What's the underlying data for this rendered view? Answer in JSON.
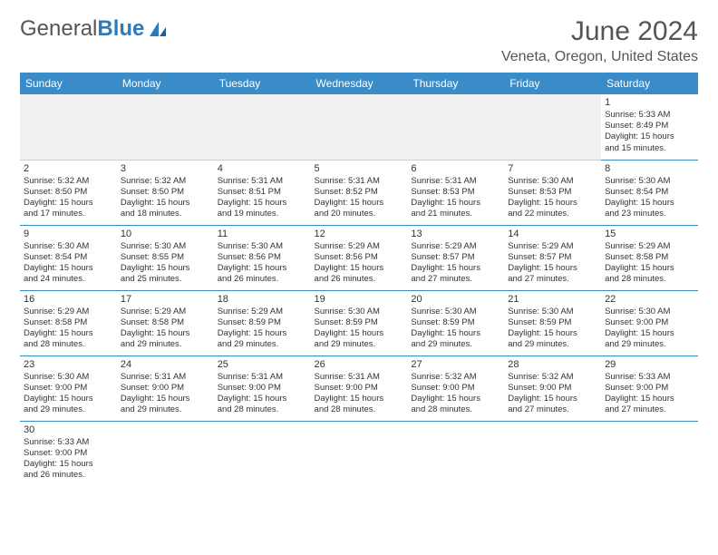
{
  "logo": {
    "text1": "General",
    "text2": "Blue"
  },
  "title": "June 2024",
  "location": "Veneta, Oregon, United States",
  "colors": {
    "header_bg": "#3a8cc9",
    "header_text": "#ffffff",
    "rule": "#3a8cc9",
    "logo_blue": "#2b7bbf",
    "text": "#333333",
    "muted_bg": "#f0f0f0"
  },
  "weekdays": [
    "Sunday",
    "Monday",
    "Tuesday",
    "Wednesday",
    "Thursday",
    "Friday",
    "Saturday"
  ],
  "weeks": [
    [
      null,
      null,
      null,
      null,
      null,
      null,
      {
        "n": "1",
        "sunrise": "Sunrise: 5:33 AM",
        "sunset": "Sunset: 8:49 PM",
        "day1": "Daylight: 15 hours",
        "day2": "and 15 minutes."
      }
    ],
    [
      {
        "n": "2",
        "sunrise": "Sunrise: 5:32 AM",
        "sunset": "Sunset: 8:50 PM",
        "day1": "Daylight: 15 hours",
        "day2": "and 17 minutes."
      },
      {
        "n": "3",
        "sunrise": "Sunrise: 5:32 AM",
        "sunset": "Sunset: 8:50 PM",
        "day1": "Daylight: 15 hours",
        "day2": "and 18 minutes."
      },
      {
        "n": "4",
        "sunrise": "Sunrise: 5:31 AM",
        "sunset": "Sunset: 8:51 PM",
        "day1": "Daylight: 15 hours",
        "day2": "and 19 minutes."
      },
      {
        "n": "5",
        "sunrise": "Sunrise: 5:31 AM",
        "sunset": "Sunset: 8:52 PM",
        "day1": "Daylight: 15 hours",
        "day2": "and 20 minutes."
      },
      {
        "n": "6",
        "sunrise": "Sunrise: 5:31 AM",
        "sunset": "Sunset: 8:53 PM",
        "day1": "Daylight: 15 hours",
        "day2": "and 21 minutes."
      },
      {
        "n": "7",
        "sunrise": "Sunrise: 5:30 AM",
        "sunset": "Sunset: 8:53 PM",
        "day1": "Daylight: 15 hours",
        "day2": "and 22 minutes."
      },
      {
        "n": "8",
        "sunrise": "Sunrise: 5:30 AM",
        "sunset": "Sunset: 8:54 PM",
        "day1": "Daylight: 15 hours",
        "day2": "and 23 minutes."
      }
    ],
    [
      {
        "n": "9",
        "sunrise": "Sunrise: 5:30 AM",
        "sunset": "Sunset: 8:54 PM",
        "day1": "Daylight: 15 hours",
        "day2": "and 24 minutes."
      },
      {
        "n": "10",
        "sunrise": "Sunrise: 5:30 AM",
        "sunset": "Sunset: 8:55 PM",
        "day1": "Daylight: 15 hours",
        "day2": "and 25 minutes."
      },
      {
        "n": "11",
        "sunrise": "Sunrise: 5:30 AM",
        "sunset": "Sunset: 8:56 PM",
        "day1": "Daylight: 15 hours",
        "day2": "and 26 minutes."
      },
      {
        "n": "12",
        "sunrise": "Sunrise: 5:29 AM",
        "sunset": "Sunset: 8:56 PM",
        "day1": "Daylight: 15 hours",
        "day2": "and 26 minutes."
      },
      {
        "n": "13",
        "sunrise": "Sunrise: 5:29 AM",
        "sunset": "Sunset: 8:57 PM",
        "day1": "Daylight: 15 hours",
        "day2": "and 27 minutes."
      },
      {
        "n": "14",
        "sunrise": "Sunrise: 5:29 AM",
        "sunset": "Sunset: 8:57 PM",
        "day1": "Daylight: 15 hours",
        "day2": "and 27 minutes."
      },
      {
        "n": "15",
        "sunrise": "Sunrise: 5:29 AM",
        "sunset": "Sunset: 8:58 PM",
        "day1": "Daylight: 15 hours",
        "day2": "and 28 minutes."
      }
    ],
    [
      {
        "n": "16",
        "sunrise": "Sunrise: 5:29 AM",
        "sunset": "Sunset: 8:58 PM",
        "day1": "Daylight: 15 hours",
        "day2": "and 28 minutes."
      },
      {
        "n": "17",
        "sunrise": "Sunrise: 5:29 AM",
        "sunset": "Sunset: 8:58 PM",
        "day1": "Daylight: 15 hours",
        "day2": "and 29 minutes."
      },
      {
        "n": "18",
        "sunrise": "Sunrise: 5:29 AM",
        "sunset": "Sunset: 8:59 PM",
        "day1": "Daylight: 15 hours",
        "day2": "and 29 minutes."
      },
      {
        "n": "19",
        "sunrise": "Sunrise: 5:30 AM",
        "sunset": "Sunset: 8:59 PM",
        "day1": "Daylight: 15 hours",
        "day2": "and 29 minutes."
      },
      {
        "n": "20",
        "sunrise": "Sunrise: 5:30 AM",
        "sunset": "Sunset: 8:59 PM",
        "day1": "Daylight: 15 hours",
        "day2": "and 29 minutes."
      },
      {
        "n": "21",
        "sunrise": "Sunrise: 5:30 AM",
        "sunset": "Sunset: 8:59 PM",
        "day1": "Daylight: 15 hours",
        "day2": "and 29 minutes."
      },
      {
        "n": "22",
        "sunrise": "Sunrise: 5:30 AM",
        "sunset": "Sunset: 9:00 PM",
        "day1": "Daylight: 15 hours",
        "day2": "and 29 minutes."
      }
    ],
    [
      {
        "n": "23",
        "sunrise": "Sunrise: 5:30 AM",
        "sunset": "Sunset: 9:00 PM",
        "day1": "Daylight: 15 hours",
        "day2": "and 29 minutes."
      },
      {
        "n": "24",
        "sunrise": "Sunrise: 5:31 AM",
        "sunset": "Sunset: 9:00 PM",
        "day1": "Daylight: 15 hours",
        "day2": "and 29 minutes."
      },
      {
        "n": "25",
        "sunrise": "Sunrise: 5:31 AM",
        "sunset": "Sunset: 9:00 PM",
        "day1": "Daylight: 15 hours",
        "day2": "and 28 minutes."
      },
      {
        "n": "26",
        "sunrise": "Sunrise: 5:31 AM",
        "sunset": "Sunset: 9:00 PM",
        "day1": "Daylight: 15 hours",
        "day2": "and 28 minutes."
      },
      {
        "n": "27",
        "sunrise": "Sunrise: 5:32 AM",
        "sunset": "Sunset: 9:00 PM",
        "day1": "Daylight: 15 hours",
        "day2": "and 28 minutes."
      },
      {
        "n": "28",
        "sunrise": "Sunrise: 5:32 AM",
        "sunset": "Sunset: 9:00 PM",
        "day1": "Daylight: 15 hours",
        "day2": "and 27 minutes."
      },
      {
        "n": "29",
        "sunrise": "Sunrise: 5:33 AM",
        "sunset": "Sunset: 9:00 PM",
        "day1": "Daylight: 15 hours",
        "day2": "and 27 minutes."
      }
    ],
    [
      {
        "n": "30",
        "sunrise": "Sunrise: 5:33 AM",
        "sunset": "Sunset: 9:00 PM",
        "day1": "Daylight: 15 hours",
        "day2": "and 26 minutes."
      },
      null,
      null,
      null,
      null,
      null,
      null
    ]
  ]
}
